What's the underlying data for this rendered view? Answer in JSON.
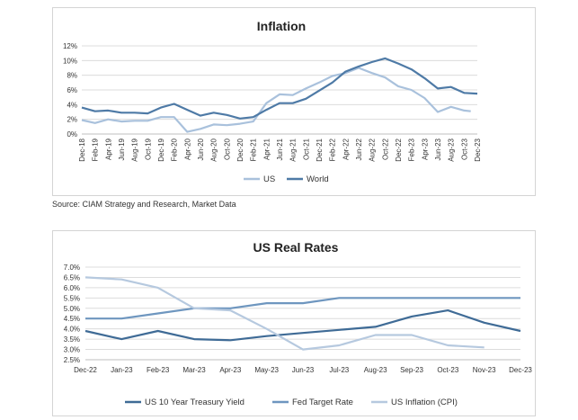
{
  "chart_data": [
    {
      "type": "line",
      "title": "Inflation",
      "xlabel": "",
      "ylabel": "",
      "ylim": [
        0,
        12
      ],
      "yticks": [
        "0%",
        "2%",
        "4%",
        "6%",
        "8%",
        "10%",
        "12%"
      ],
      "categories": [
        "Dec-18",
        "Feb-19",
        "Apr-19",
        "Jun-19",
        "Aug-19",
        "Oct-19",
        "Dec-19",
        "Feb-20",
        "Apr-20",
        "Jun-20",
        "Aug-20",
        "Oct-20",
        "Dec-20",
        "Feb-21",
        "Apr-21",
        "Jun-21",
        "Aug-21",
        "Oct-21",
        "Dec-21",
        "Feb-22",
        "Apr-22",
        "Jun-22",
        "Aug-22",
        "Oct-22",
        "Dec-22",
        "Feb-23",
        "Apr-23",
        "Jun-23",
        "Aug-23",
        "Oct-23",
        "Dec-23"
      ],
      "series": [
        {
          "name": "US",
          "color": "#a9c1dc",
          "values": [
            1.9,
            1.5,
            2.0,
            1.7,
            1.8,
            1.8,
            2.3,
            2.3,
            0.3,
            0.7,
            1.3,
            1.2,
            1.4,
            1.7,
            4.2,
            5.4,
            5.3,
            6.2,
            7.0,
            7.9,
            8.3,
            9.0,
            8.3,
            7.7,
            6.5,
            6.0,
            4.9,
            3.0,
            3.7,
            3.2,
            null
          ],
          "x_end": "Nov-23",
          "end_value": 3.1
        },
        {
          "name": "World",
          "color": "#4e7aa6",
          "values": [
            3.6,
            3.1,
            3.2,
            2.9,
            2.9,
            2.8,
            3.6,
            4.1,
            3.3,
            2.5,
            2.9,
            2.6,
            2.1,
            2.3,
            3.3,
            4.2,
            4.2,
            4.8,
            5.9,
            7.0,
            8.5,
            9.2,
            9.8,
            10.3,
            9.6,
            8.8,
            7.6,
            6.2,
            6.4,
            5.6,
            5.5
          ]
        }
      ],
      "legend": "bottom"
    },
    {
      "type": "line",
      "title": "US Real Rates",
      "xlabel": "",
      "ylabel": "",
      "ylim": [
        2.5,
        7.0
      ],
      "yticks": [
        "2.5%",
        "3.0%",
        "3.5%",
        "4.0%",
        "4.5%",
        "5.0%",
        "5.5%",
        "6.0%",
        "6.5%",
        "7.0%"
      ],
      "categories": [
        "Dec-22",
        "Jan-23",
        "Feb-23",
        "Mar-23",
        "Apr-23",
        "May-23",
        "Jun-23",
        "Jul-23",
        "Aug-23",
        "Sep-23",
        "Oct-23",
        "Nov-23",
        "Dec-23"
      ],
      "series": [
        {
          "name": "US 10 Year Treasury Yield",
          "color": "#3f6b96",
          "values": [
            3.9,
            3.5,
            3.9,
            3.5,
            3.45,
            3.65,
            3.8,
            3.95,
            4.1,
            4.6,
            4.9,
            4.3,
            3.9
          ]
        },
        {
          "name": "Fed Target Rate",
          "color": "#6e96bf",
          "values": [
            4.5,
            4.5,
            4.75,
            5.0,
            5.0,
            5.25,
            5.25,
            5.5,
            5.5,
            5.5,
            5.5,
            5.5,
            5.5
          ]
        },
        {
          "name": "US Inflation (CPI)",
          "color": "#b6c9df",
          "values": [
            6.5,
            6.4,
            6.0,
            5.0,
            4.9,
            4.0,
            3.0,
            3.2,
            3.7,
            3.7,
            3.2,
            3.1,
            null
          ]
        }
      ],
      "legend": "bottom"
    }
  ],
  "source": "Source: CIAM Strategy and Research, Market Data"
}
